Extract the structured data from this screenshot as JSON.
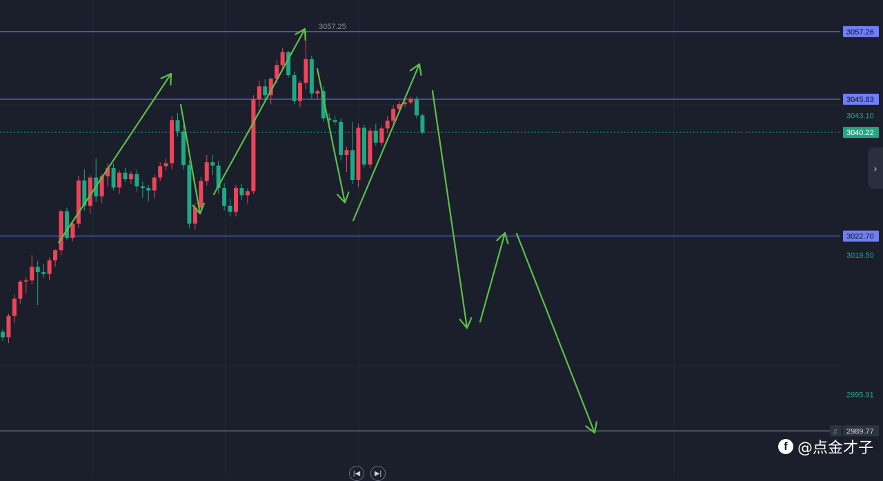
{
  "chart_data": {
    "type": "candlestick",
    "price_axis_labels": [
      "3057.26",
      "3045.83",
      "3043.10",
      "3040.22",
      "3022.70",
      "3019.50",
      "2995.91",
      "2989.77"
    ],
    "price_range": [
      2982.0,
      3062.6
    ],
    "high_marker": "3057.25",
    "horizontal_levels": [
      {
        "price": 3057.26,
        "label": "3057.26",
        "color": "#5b6cf0"
      },
      {
        "price": 3045.83,
        "label": "3045.83",
        "color": "#5b6cf0"
      },
      {
        "price": 3022.7,
        "label": "3022.70",
        "color": "#5b6cf0"
      },
      {
        "price": 2989.77,
        "label": "2989.77",
        "color": "#8a8f9c"
      }
    ],
    "last_price": {
      "price": 3040.22,
      "label": "3040.22",
      "color": "#1ea884"
    },
    "axis_text_labels": [
      {
        "price": 3043.1,
        "label": "3043.10"
      },
      {
        "price": 3019.5,
        "label": "3019.50"
      },
      {
        "price": 2995.91,
        "label": "2995.91"
      }
    ],
    "candles": [
      [
        3006.5,
        3007.0,
        3005.0,
        3005.6
      ],
      [
        3005.6,
        3009.6,
        3004.6,
        3009.2
      ],
      [
        3009.2,
        3012.8,
        3008.0,
        3012.1
      ],
      [
        3012.1,
        3015.3,
        3011.3,
        3015.0
      ],
      [
        3015.0,
        3015.8,
        3013.0,
        3015.2
      ],
      [
        3015.2,
        3019.5,
        3014.5,
        3017.5
      ],
      [
        3017.5,
        3018.5,
        3011.0,
        3016.6
      ],
      [
        3016.6,
        3018.0,
        3015.7,
        3016.3
      ],
      [
        3016.3,
        3019.1,
        3015.3,
        3018.6
      ],
      [
        3018.6,
        3020.5,
        3017.5,
        3020.3
      ],
      [
        3020.3,
        3027.2,
        3019.5,
        3026.9
      ],
      [
        3026.9,
        3027.5,
        3022.0,
        3022.4
      ],
      [
        3022.4,
        3025.3,
        3021.8,
        3024.8
      ],
      [
        3024.8,
        3032.9,
        3024.1,
        3032.1
      ],
      [
        3032.1,
        3034.0,
        3027.0,
        3027.8
      ],
      [
        3027.8,
        3033.0,
        3026.5,
        3032.6
      ],
      [
        3032.6,
        3035.8,
        3028.5,
        3029.4
      ],
      [
        3029.4,
        3033.2,
        3028.3,
        3032.8
      ],
      [
        3032.8,
        3035.0,
        3031.1,
        3034.2
      ],
      [
        3034.2,
        3034.9,
        3030.4,
        3030.9
      ],
      [
        3030.9,
        3033.8,
        3029.8,
        3033.4
      ],
      [
        3033.4,
        3034.2,
        3031.8,
        3032.3
      ],
      [
        3032.3,
        3033.6,
        3031.5,
        3033.2
      ],
      [
        3033.2,
        3033.9,
        3030.2,
        3031.1
      ],
      [
        3031.1,
        3031.9,
        3029.2,
        3030.8
      ],
      [
        3030.8,
        3031.3,
        3028.5,
        3030.4
      ],
      [
        3030.4,
        3033.1,
        3029.1,
        3032.6
      ],
      [
        3032.6,
        3035.2,
        3032.0,
        3034.5
      ],
      [
        3034.5,
        3035.8,
        3033.8,
        3035.0
      ],
      [
        3035.0,
        3043.0,
        3034.0,
        3042.3
      ],
      [
        3042.3,
        3043.5,
        3039.5,
        3040.4
      ],
      [
        3040.4,
        3041.5,
        3034.0,
        3034.7
      ],
      [
        3034.7,
        3035.5,
        3024.0,
        3024.8
      ],
      [
        3024.8,
        3028.3,
        3023.8,
        3027.5
      ],
      [
        3027.5,
        3032.7,
        3026.8,
        3032.0
      ],
      [
        3032.0,
        3036.4,
        3031.2,
        3035.2
      ],
      [
        3035.2,
        3036.4,
        3033.0,
        3034.6
      ],
      [
        3034.6,
        3035.4,
        3029.9,
        3030.8
      ],
      [
        3030.8,
        3031.6,
        3027.0,
        3027.8
      ],
      [
        3027.8,
        3029.0,
        3026.0,
        3026.8
      ],
      [
        3026.8,
        3031.3,
        3026.0,
        3030.8
      ],
      [
        3030.8,
        3031.5,
        3028.8,
        3029.6
      ],
      [
        3029.6,
        3030.8,
        3028.2,
        3030.3
      ],
      [
        3030.3,
        3046.5,
        3029.8,
        3045.8
      ],
      [
        3045.8,
        3049.0,
        3044.5,
        3048.0
      ],
      [
        3048.0,
        3049.2,
        3045.5,
        3046.5
      ],
      [
        3046.5,
        3049.5,
        3045.0,
        3049.3
      ],
      [
        3049.3,
        3052.5,
        3048.5,
        3051.6
      ],
      [
        3051.6,
        3054.5,
        3050.8,
        3053.8
      ],
      [
        3053.8,
        3054.0,
        3049.5,
        3049.9
      ],
      [
        3049.9,
        3050.5,
        3045.0,
        3045.5
      ],
      [
        3045.5,
        3049.0,
        3044.5,
        3048.6
      ],
      [
        3048.6,
        3057.3,
        3047.5,
        3052.6
      ],
      [
        3052.6,
        3053.2,
        3046.0,
        3046.8
      ],
      [
        3046.8,
        3047.5,
        3045.8,
        3047.2
      ],
      [
        3047.2,
        3048.0,
        3042.0,
        3042.6
      ],
      [
        3042.6,
        3043.5,
        3041.5,
        3042.3
      ],
      [
        3042.3,
        3043.0,
        3041.5,
        3042.0
      ],
      [
        3042.0,
        3042.6,
        3035.5,
        3036.4
      ],
      [
        3036.4,
        3037.8,
        3033.5,
        3037.2
      ],
      [
        3037.2,
        3042.0,
        3031.5,
        3032.2
      ],
      [
        3032.2,
        3041.7,
        3031.0,
        3041.0
      ],
      [
        3041.0,
        3041.5,
        3034.3,
        3034.8
      ],
      [
        3034.8,
        3041.0,
        3034.2,
        3040.5
      ],
      [
        3040.5,
        3041.7,
        3038.0,
        3038.5
      ],
      [
        3038.5,
        3041.4,
        3038.0,
        3040.9
      ],
      [
        3040.9,
        3043.0,
        3040.2,
        3042.2
      ],
      [
        3042.2,
        3044.8,
        3041.5,
        3044.2
      ],
      [
        3044.2,
        3045.5,
        3043.5,
        3045.0
      ],
      [
        3045.0,
        3045.8,
        3044.5,
        3045.3
      ],
      [
        3045.3,
        3046.2,
        3045.0,
        3045.9
      ],
      [
        3045.9,
        3046.3,
        3042.6,
        3043.1
      ],
      [
        3043.1,
        3043.4,
        3039.9,
        3040.2
      ]
    ],
    "up_color": "#f0435a",
    "down_color": "#1ea884",
    "grid": true,
    "annotations": "hand-drawn green zigzag arrows: past swings and a projected decline below 2989.77"
  },
  "watermark": {
    "text": "@点金才子",
    "icon": "facebook-icon"
  },
  "nav": {
    "prev_icon": "skip-back-icon",
    "next_icon": "skip-forward-icon"
  },
  "side_toggle_icon": "chevron-right-icon"
}
